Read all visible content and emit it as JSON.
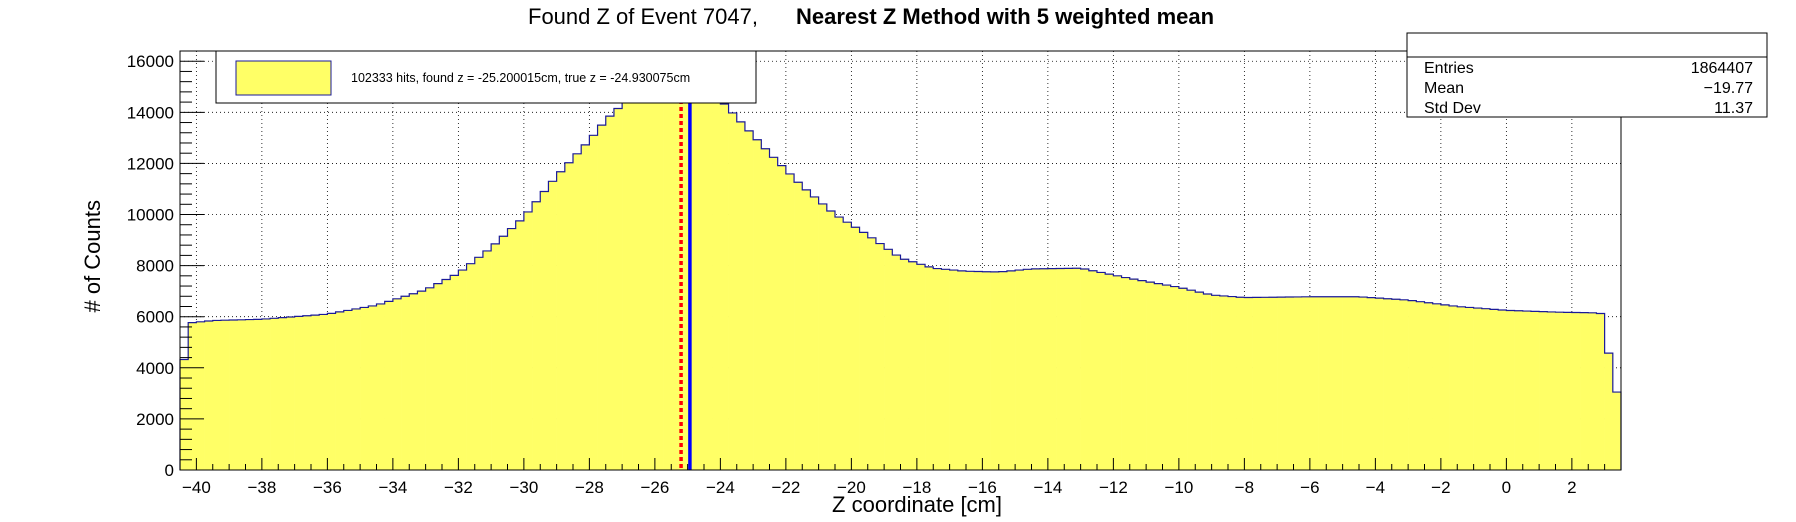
{
  "chart_data": {
    "type": "histogram",
    "title_prefix": "Found Z of Event 7047,",
    "title_bold": "Nearest Z Method with 5 weighted mean",
    "xlabel": "Z coordinate [cm]",
    "ylabel": "# of Counts",
    "xlim": [
      -40.5,
      3.5
    ],
    "ylim": [
      0,
      16400
    ],
    "xticks": [
      -40,
      -38,
      -36,
      -34,
      -32,
      -30,
      -28,
      -26,
      -24,
      -22,
      -20,
      -18,
      -16,
      -14,
      -12,
      -10,
      -8,
      -6,
      -4,
      -2,
      0,
      2
    ],
    "yticks": [
      0,
      2000,
      4000,
      6000,
      8000,
      10000,
      12000,
      14000,
      16000
    ],
    "grid": true,
    "bin_width": 0.25,
    "profile": [
      [
        -40.5,
        2900
      ],
      [
        -40.25,
        5750
      ],
      [
        -39.5,
        5850
      ],
      [
        -38,
        5900
      ],
      [
        -36,
        6100
      ],
      [
        -34.5,
        6450
      ],
      [
        -33,
        7050
      ],
      [
        -32,
        7700
      ],
      [
        -31,
        8700
      ],
      [
        -30,
        9900
      ],
      [
        -29,
        11500
      ],
      [
        -28,
        12900
      ],
      [
        -27.5,
        13700
      ],
      [
        -27,
        14300
      ],
      [
        -26.5,
        15000
      ],
      [
        -25.5,
        15800
      ],
      [
        -25,
        16200
      ],
      [
        -24.5,
        15400
      ],
      [
        -24,
        14500
      ],
      [
        -23.5,
        13800
      ],
      [
        -22.5,
        12400
      ],
      [
        -21.5,
        11100
      ],
      [
        -20.5,
        10000
      ],
      [
        -19.5,
        9200
      ],
      [
        -18.5,
        8300
      ],
      [
        -17.5,
        7900
      ],
      [
        -16.5,
        7780
      ],
      [
        -15.5,
        7750
      ],
      [
        -14.5,
        7870
      ],
      [
        -13,
        7900
      ],
      [
        -11.5,
        7500
      ],
      [
        -10,
        7150
      ],
      [
        -9,
        6850
      ],
      [
        -8,
        6750
      ],
      [
        -6,
        6780
      ],
      [
        -4.5,
        6780
      ],
      [
        -3,
        6650
      ],
      [
        -1.5,
        6400
      ],
      [
        0,
        6250
      ],
      [
        1.5,
        6180
      ],
      [
        2.75,
        6150
      ],
      [
        3.0,
        6100
      ],
      [
        3.25,
        3050
      ],
      [
        3.5,
        3050
      ]
    ],
    "found_z": -25.200015,
    "true_z": -24.930075,
    "fill_color": "#ffff66",
    "line_color": "#1a1a99",
    "found_line_color": "#ff0000",
    "true_line_color": "#0000ff"
  },
  "legend": {
    "text": "102333 hits, found z = -25.200015cm, true z = -24.930075cm",
    "position": "top-left"
  },
  "stats": {
    "position": "top-right",
    "rows": [
      {
        "label": "Entries",
        "value": "1864407"
      },
      {
        "label": "Mean",
        "value": "−19.77"
      },
      {
        "label": "Std Dev",
        "value": "11.37"
      }
    ]
  }
}
